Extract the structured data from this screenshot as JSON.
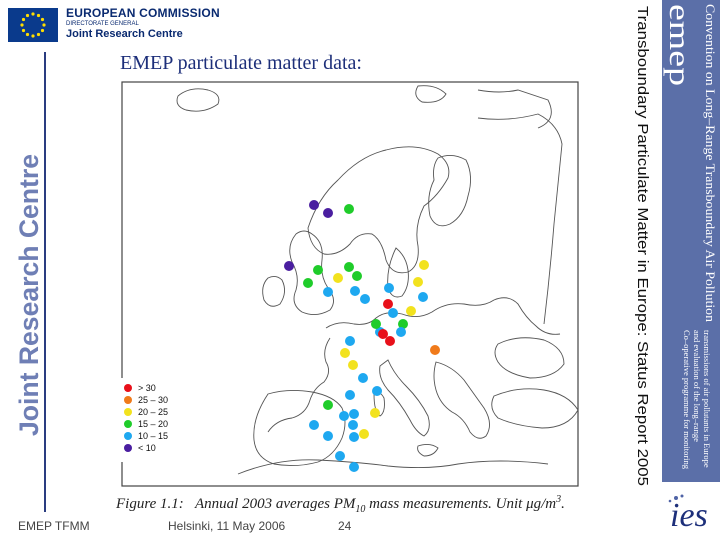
{
  "header": {
    "organization": "EUROPEAN COMMISSION",
    "directorate": "DIRECTORATE GENERAL",
    "centre": "Joint Research Centre"
  },
  "banner": {
    "vertical_text": "Joint Research Centre"
  },
  "slide": {
    "title": "EMEP particulate matter data:",
    "vertical_title": "Transboundary Particulate Matter in Europe: Status Report 2005"
  },
  "emep": {
    "logo_text": "emep",
    "convention": "Convention on Long–Range Transboundary Air Pollution",
    "programme_lines": [
      "Co–operative programme for monitoring",
      "and evaluation of the long–range",
      "transmissions of air pollutants in Europe"
    ]
  },
  "map": {
    "legend": [
      {
        "label": "> 30",
        "color": "#e8101a"
      },
      {
        "label": "25 – 30",
        "color": "#f07a1a"
      },
      {
        "label": "20 – 25",
        "color": "#f2e21e"
      },
      {
        "label": "15 – 20",
        "color": "#1fcc2a"
      },
      {
        "label": "10 – 15",
        "color": "#1ea8f0"
      },
      {
        "label": "< 10",
        "color": "#4a1ea0"
      }
    ],
    "stations": [
      {
        "bin": 5
      },
      {
        "bin": 5
      },
      {
        "bin": 3
      },
      {
        "bin": 5
      },
      {
        "bin": 3
      },
      {
        "bin": 3
      },
      {
        "bin": 2
      },
      {
        "bin": 3
      },
      {
        "bin": 4
      },
      {
        "bin": 3
      },
      {
        "bin": 4
      },
      {
        "bin": 2
      },
      {
        "bin": 2
      },
      {
        "bin": 4
      },
      {
        "bin": 4
      },
      {
        "bin": 0
      },
      {
        "bin": 4
      },
      {
        "bin": 4
      },
      {
        "bin": 2
      },
      {
        "bin": 3
      },
      {
        "bin": 4
      },
      {
        "bin": 0
      },
      {
        "bin": 4
      },
      {
        "bin": 4
      },
      {
        "bin": 2
      },
      {
        "bin": 4
      },
      {
        "bin": 0
      },
      {
        "bin": 3
      },
      {
        "bin": 2
      },
      {
        "bin": 4
      },
      {
        "bin": 4
      },
      {
        "bin": 4
      },
      {
        "bin": 1
      },
      {
        "bin": 3
      },
      {
        "bin": 4
      },
      {
        "bin": 4
      },
      {
        "bin": 4
      },
      {
        "bin": 4
      },
      {
        "bin": 4
      },
      {
        "bin": 2
      },
      {
        "bin": 2
      },
      {
        "bin": 4
      },
      {
        "bin": 4
      }
    ]
  },
  "caption": {
    "figure_label": "Figure 1.1:",
    "text": "Annual 2003 averages PM",
    "subscript": "10",
    "text_after": " mass measurements. Unit μg/m",
    "superscript": "3",
    "end": "."
  },
  "footer": {
    "left": "EMEP TFMM",
    "center": "Helsinki, 11 May 2006",
    "page": "24"
  },
  "ies": {
    "logo_text": "ies"
  }
}
